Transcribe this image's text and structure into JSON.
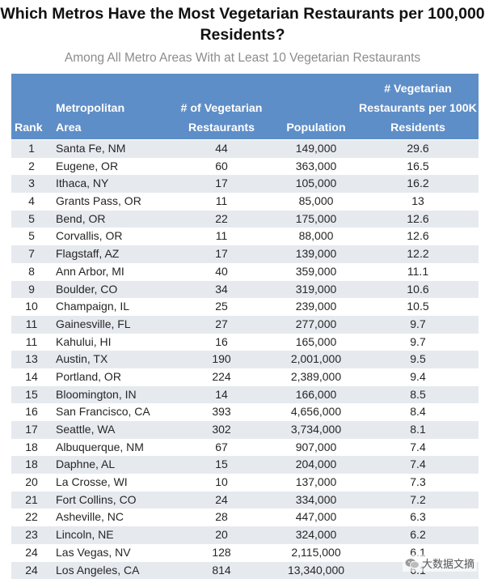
{
  "chart_data": {
    "type": "table",
    "title": "Which Metros Have the Most Vegetarian Restaurants per 100,000 Residents?",
    "subtitle": "Among All Metro Areas With at Least 10 Vegetarian Restaurants",
    "columns": {
      "rank": "Rank",
      "metro": "Metropolitan Area",
      "count": "# of Vegetarian Restaurants",
      "population": "Population",
      "per100k": "# Vegetarian Restaurants per 100K Residents"
    },
    "rows": [
      {
        "rank": "1",
        "metro": "Santa Fe, NM",
        "count": "44",
        "population": "149,000",
        "per100k": "29.6"
      },
      {
        "rank": "2",
        "metro": "Eugene, OR",
        "count": "60",
        "population": "363,000",
        "per100k": "16.5"
      },
      {
        "rank": "3",
        "metro": "Ithaca, NY",
        "count": "17",
        "population": "105,000",
        "per100k": "16.2"
      },
      {
        "rank": "4",
        "metro": "Grants Pass, OR",
        "count": "11",
        "population": "85,000",
        "per100k": "13"
      },
      {
        "rank": "5",
        "metro": "Bend, OR",
        "count": "22",
        "population": "175,000",
        "per100k": "12.6"
      },
      {
        "rank": "5",
        "metro": "Corvallis, OR",
        "count": "11",
        "population": "88,000",
        "per100k": "12.6"
      },
      {
        "rank": "7",
        "metro": "Flagstaff, AZ",
        "count": "17",
        "population": "139,000",
        "per100k": "12.2"
      },
      {
        "rank": "8",
        "metro": "Ann Arbor, MI",
        "count": "40",
        "population": "359,000",
        "per100k": "11.1"
      },
      {
        "rank": "9",
        "metro": "Boulder, CO",
        "count": "34",
        "population": "319,000",
        "per100k": "10.6"
      },
      {
        "rank": "10",
        "metro": "Champaign, IL",
        "count": "25",
        "population": "239,000",
        "per100k": "10.5"
      },
      {
        "rank": "11",
        "metro": "Gainesville, FL",
        "count": "27",
        "population": "277,000",
        "per100k": "9.7"
      },
      {
        "rank": "11",
        "metro": "Kahului, HI",
        "count": "16",
        "population": "165,000",
        "per100k": "9.7"
      },
      {
        "rank": "13",
        "metro": "Austin, TX",
        "count": "190",
        "population": "2,001,000",
        "per100k": "9.5"
      },
      {
        "rank": "14",
        "metro": "Portland, OR",
        "count": "224",
        "population": "2,389,000",
        "per100k": "9.4"
      },
      {
        "rank": "15",
        "metro": "Bloomington, IN",
        "count": "14",
        "population": "166,000",
        "per100k": "8.5"
      },
      {
        "rank": "16",
        "metro": "San Francisco, CA",
        "count": "393",
        "population": "4,656,000",
        "per100k": "8.4"
      },
      {
        "rank": "17",
        "metro": "Seattle, WA",
        "count": "302",
        "population": "3,734,000",
        "per100k": "8.1"
      },
      {
        "rank": "18",
        "metro": "Albuquerque, NM",
        "count": "67",
        "population": "907,000",
        "per100k": "7.4"
      },
      {
        "rank": "18",
        "metro": "Daphne, AL",
        "count": "15",
        "population": "204,000",
        "per100k": "7.4"
      },
      {
        "rank": "20",
        "metro": "La Crosse, WI",
        "count": "10",
        "population": "137,000",
        "per100k": "7.3"
      },
      {
        "rank": "21",
        "metro": "Fort Collins, CO",
        "count": "24",
        "population": "334,000",
        "per100k": "7.2"
      },
      {
        "rank": "22",
        "metro": "Asheville, NC",
        "count": "28",
        "population": "447,000",
        "per100k": "6.3"
      },
      {
        "rank": "23",
        "metro": "Lincoln, NE",
        "count": "20",
        "population": "324,000",
        "per100k": "6.2"
      },
      {
        "rank": "24",
        "metro": "Las Vegas, NV",
        "count": "128",
        "population": "2,115,000",
        "per100k": "6.1"
      },
      {
        "rank": "24",
        "metro": "Los Angeles, CA",
        "count": "814",
        "population": "13,340,000",
        "per100k": "6.1"
      }
    ]
  },
  "colors": {
    "header_bg": "#5e8ec7",
    "stripe": "#e6eaef",
    "subtitle": "#8c8c8c"
  },
  "watermark": {
    "text": "大数据文摘",
    "icon": "wechat-icon"
  }
}
